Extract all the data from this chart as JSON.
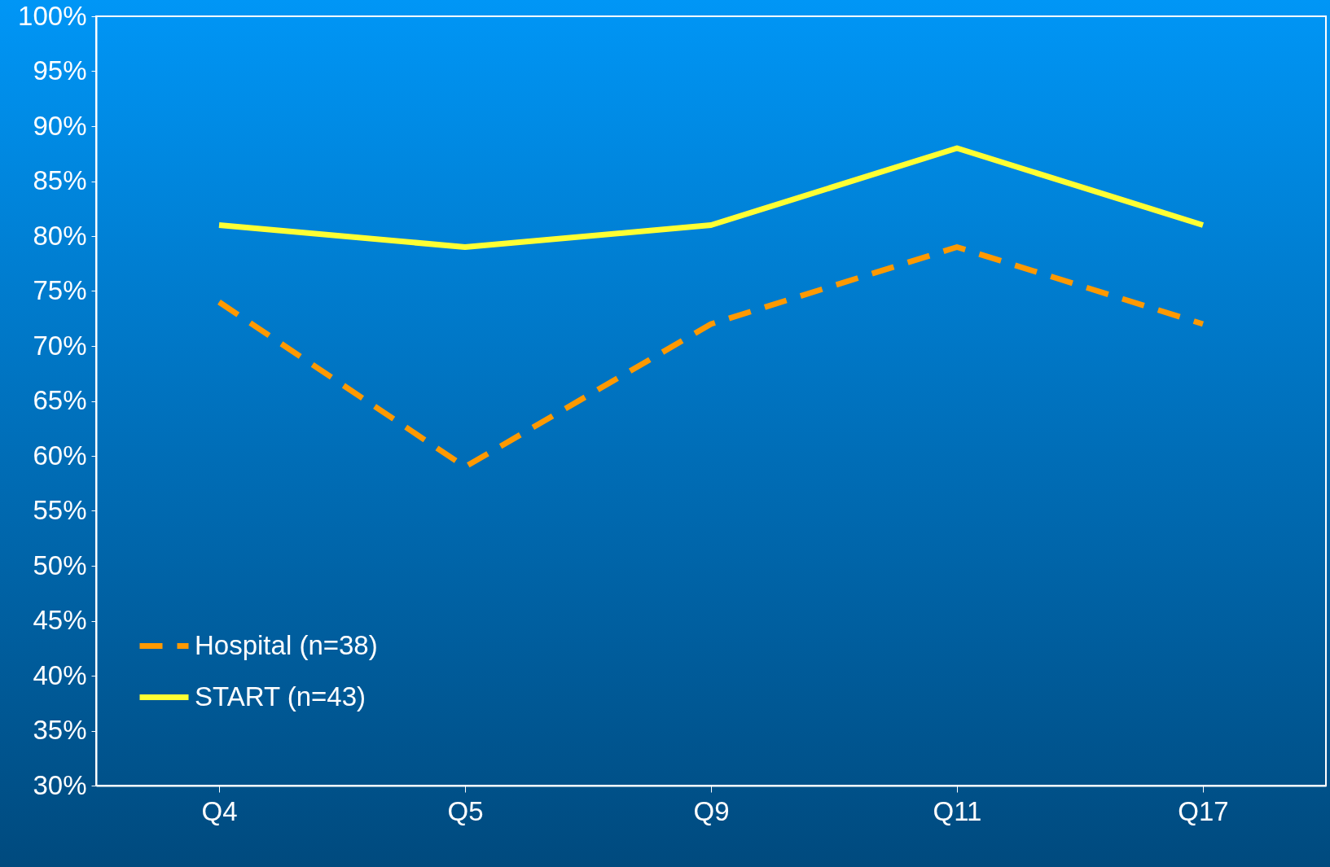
{
  "chart_data": {
    "type": "line",
    "categories": [
      "Q4",
      "Q5",
      "Q9",
      "Q11",
      "Q17"
    ],
    "series": [
      {
        "name": "Hospital (n=38)",
        "color": "#ff9900",
        "line_style": "dashed",
        "values": [
          74,
          59,
          72,
          79,
          72
        ]
      },
      {
        "name": "START (n=43)",
        "color": "#ffff33",
        "line_style": "solid",
        "values": [
          81,
          79,
          81,
          88,
          81
        ]
      }
    ],
    "ylim": [
      30,
      100
    ],
    "yticks": [
      {
        "value": 30,
        "label": "30%"
      },
      {
        "value": 35,
        "label": "35%"
      },
      {
        "value": 40,
        "label": "40%"
      },
      {
        "value": 45,
        "label": "45%"
      },
      {
        "value": 50,
        "label": "50%"
      },
      {
        "value": 55,
        "label": "55%"
      },
      {
        "value": 60,
        "label": "60%"
      },
      {
        "value": 65,
        "label": "65%"
      },
      {
        "value": 70,
        "label": "70%"
      },
      {
        "value": 75,
        "label": "75%"
      },
      {
        "value": 80,
        "label": "80%"
      },
      {
        "value": 85,
        "label": "85%"
      },
      {
        "value": 90,
        "label": "90%"
      },
      {
        "value": 95,
        "label": "95%"
      },
      {
        "value": 100,
        "label": "100%"
      }
    ],
    "grid": false,
    "legend": "bottom left",
    "marker": "none"
  }
}
